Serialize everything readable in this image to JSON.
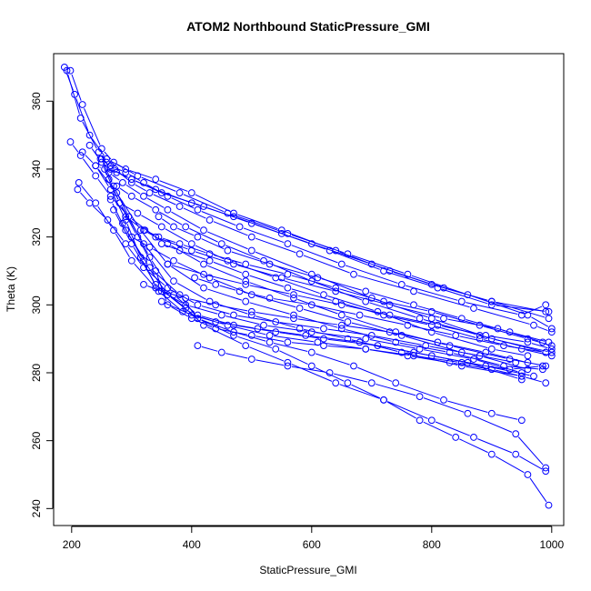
{
  "chart_data": {
    "type": "line",
    "title": "ATOM2 Northbound StaticPressure_GMI",
    "xlabel": "StaticPressure_GMI",
    "ylabel": "Theta (K)",
    "xlim": [
      170,
      1020
    ],
    "ylim": [
      235,
      374
    ],
    "x_ticks": [
      200,
      400,
      600,
      800,
      1000
    ],
    "y_ticks": [
      240,
      260,
      280,
      300,
      320,
      340,
      360
    ],
    "x_tick_labels": [
      "200",
      "400",
      "600",
      "800",
      "1000"
    ],
    "y_tick_labels": [
      "240",
      "260",
      "280",
      "300",
      "320",
      "340",
      "360"
    ],
    "grid": false,
    "markers": "open-circle",
    "color": "#0000ff",
    "series": [
      {
        "x": [
          188,
          205,
          230,
          258,
          290,
          340,
          400,
          470,
          550,
          640,
          730,
          820,
          900,
          990
        ],
        "y": [
          370,
          362,
          350,
          343,
          340,
          337,
          333,
          327,
          322,
          316,
          310,
          305,
          301,
          298
        ]
      },
      {
        "x": [
          192,
          215,
          245,
          265,
          300,
          350,
          420,
          500,
          600,
          700,
          800,
          900,
          995
        ],
        "y": [
          369,
          355,
          345,
          340,
          337,
          333,
          329,
          324,
          318,
          312,
          306,
          301,
          296
        ]
      },
      {
        "x": [
          198,
          218,
          250,
          270,
          310,
          380,
          460,
          560,
          660,
          760,
          860,
          960,
          1000
        ],
        "y": [
          369,
          359,
          346,
          342,
          338,
          333,
          327,
          321,
          315,
          309,
          303,
          297,
          293
        ]
      },
      {
        "x": [
          240,
          255,
          275,
          300,
          340,
          400,
          470,
          550,
          630,
          720,
          810,
          900,
          995
        ],
        "y": [
          341,
          340,
          339,
          337,
          334,
          330,
          326,
          321,
          316,
          310,
          305,
          300,
          298
        ]
      },
      {
        "x": [
          248,
          265,
          290,
          320,
          360,
          410,
          480,
          560,
          650,
          750,
          850,
          950,
          990
        ],
        "y": [
          343,
          341,
          339,
          336,
          332,
          328,
          323,
          318,
          312,
          306,
          301,
          297,
          300
        ]
      },
      {
        "x": [
          258,
          272,
          300,
          330,
          380,
          430,
          500,
          580,
          670,
          770,
          870,
          970,
          1000
        ],
        "y": [
          342,
          340,
          336,
          333,
          329,
          325,
          320,
          315,
          309,
          304,
          299,
          294,
          292
        ]
      },
      {
        "x": [
          262,
          285,
          320,
          360,
          420,
          500,
          600,
          700,
          800,
          900,
          1000
        ],
        "y": [
          339,
          336,
          332,
          328,
          322,
          316,
          309,
          302,
          296,
          290,
          286
        ]
      },
      {
        "x": [
          275,
          300,
          340,
          390,
          450,
          520,
          600,
          690,
          780,
          880,
          990
        ],
        "y": [
          335,
          332,
          328,
          323,
          318,
          313,
          307,
          301,
          296,
          291,
          286
        ]
      },
      {
        "x": [
          280,
          310,
          350,
          400,
          460,
          540,
          620,
          710,
          800,
          900,
          960
        ],
        "y": [
          330,
          327,
          323,
          318,
          313,
          308,
          303,
          298,
          292,
          287,
          285
        ]
      },
      {
        "x": [
          290,
          320,
          360,
          420,
          490,
          570,
          650,
          740,
          830,
          930,
          990
        ],
        "y": [
          326,
          322,
          318,
          312,
          307,
          302,
          297,
          292,
          288,
          284,
          282
        ]
      },
      {
        "x": [
          300,
          330,
          370,
          430,
          500,
          580,
          660,
          750,
          850,
          940
        ],
        "y": [
          320,
          317,
          313,
          308,
          303,
          299,
          295,
          291,
          286,
          283
        ]
      },
      {
        "x": [
          210,
          230,
          260,
          290,
          320,
          360,
          410,
          470,
          540,
          620,
          700,
          790,
          880,
          960
        ],
        "y": [
          334,
          330,
          325,
          318,
          311,
          305,
          300,
          297,
          295,
          293,
          291,
          288,
          285,
          281
        ]
      },
      {
        "x": [
          212,
          240,
          270,
          300,
          340,
          390,
          450,
          520,
          600,
          690,
          780,
          870,
          950
        ],
        "y": [
          336,
          330,
          322,
          313,
          305,
          300,
          297,
          294,
          292,
          290,
          287,
          284,
          280
        ]
      },
      {
        "x": [
          240,
          265,
          290,
          315,
          345,
          385,
          440,
          510,
          590,
          680,
          770,
          860,
          950
        ],
        "y": [
          341,
          334,
          325,
          314,
          304,
          298,
          295,
          293,
          291,
          289,
          286,
          283,
          278
        ]
      },
      {
        "x": [
          250,
          270,
          295,
          330,
          370,
          410,
          470,
          540,
          620,
          710,
          800,
          890,
          970
        ],
        "y": [
          343,
          335,
          326,
          314,
          303,
          297,
          294,
          292,
          290,
          288,
          285,
          282,
          279
        ]
      },
      {
        "x": [
          262,
          280,
          310,
          340,
          360,
          400,
          440,
          500,
          560,
          620,
          690,
          760,
          830,
          900,
          950
        ],
        "y": [
          337,
          330,
          320,
          310,
          300,
          296,
          293,
          291,
          289,
          288,
          287,
          285,
          283,
          281,
          279
        ]
      },
      {
        "x": [
          265,
          290,
          330,
          380,
          410,
          470,
          530,
          600,
          670,
          740,
          820,
          900,
          950
        ],
        "y": [
          331,
          322,
          311,
          303,
          296,
          292,
          289,
          286,
          282,
          277,
          272,
          268,
          266
        ]
      },
      {
        "x": [
          270,
          300,
          340,
          390,
          420,
          490,
          560,
          640,
          720,
          800,
          870,
          940,
          990
        ],
        "y": [
          328,
          318,
          306,
          299,
          294,
          288,
          283,
          277,
          272,
          266,
          261,
          256,
          251
        ]
      },
      {
        "x": [
          285,
          320,
          360,
          410,
          470,
          540,
          600,
          660,
          720,
          780,
          840,
          900,
          960,
          995
        ],
        "y": [
          324,
          313,
          303,
          296,
          291,
          287,
          282,
          277,
          272,
          266,
          261,
          256,
          250,
          241
        ]
      },
      {
        "x": [
          230,
          250,
          280,
          320,
          370,
          430,
          500,
          580,
          660,
          750,
          850,
          950,
          990
        ],
        "y": [
          347,
          342,
          330,
          318,
          307,
          301,
          297,
          293,
          290,
          286,
          282,
          279,
          277
        ]
      },
      {
        "x": [
          218,
          240,
          275,
          315,
          360,
          420,
          490,
          570,
          650,
          740,
          830,
          920,
          985
        ],
        "y": [
          345,
          341,
          333,
          322,
          312,
          305,
          301,
          297,
          293,
          289,
          286,
          282,
          281
        ]
      },
      {
        "x": [
          198,
          215,
          240,
          265,
          295,
          340,
          400,
          470,
          550,
          640,
          730,
          820,
          910,
          985
        ],
        "y": [
          348,
          344,
          338,
          332,
          326,
          320,
          316,
          312,
          308,
          304,
          300,
          296,
          293,
          289
        ]
      },
      {
        "x": [
          322,
          345,
          380,
          430,
          490,
          560,
          640,
          720,
          800,
          880,
          960,
          1000
        ],
        "y": [
          322,
          320,
          318,
          315,
          312,
          309,
          305,
          301,
          298,
          294,
          290,
          288
        ]
      },
      {
        "x": [
          345,
          370,
          410,
          460,
          530,
          610,
          690,
          770,
          850,
          930,
          995
        ],
        "y": [
          326,
          323,
          320,
          316,
          312,
          308,
          304,
          300,
          296,
          292,
          289
        ]
      },
      {
        "x": [
          350,
          380,
          430,
          490,
          560,
          640,
          720,
          800,
          880,
          950,
          1000
        ],
        "y": [
          318,
          316,
          313,
          309,
          305,
          301,
          297,
          294,
          290,
          287,
          285
        ]
      },
      {
        "x": [
          405,
          440,
          480,
          530,
          600,
          680,
          760,
          840,
          920,
          990
        ],
        "y": [
          308,
          306,
          304,
          302,
          300,
          297,
          294,
          291,
          288,
          286
        ]
      },
      {
        "x": [
          410,
          450,
          500,
          560,
          630,
          700,
          780,
          860,
          940,
          990
        ],
        "y": [
          288,
          286,
          284,
          282,
          280,
          277,
          273,
          268,
          262,
          252
        ]
      },
      {
        "x": [
          350,
          400,
          460,
          530,
          610,
          690,
          770,
          850,
          930,
          985
        ],
        "y": [
          301,
          297,
          294,
          291,
          289,
          287,
          285,
          283,
          281,
          282
        ]
      },
      {
        "x": [
          360,
          420,
          490,
          570,
          650,
          730,
          810,
          890,
          960,
          1000
        ],
        "y": [
          312,
          309,
          306,
          303,
          300,
          297,
          294,
          291,
          289,
          287
        ]
      },
      {
        "x": [
          320,
          350,
          390,
          440,
          500,
          570,
          650,
          730,
          810,
          890,
          960
        ],
        "y": [
          306,
          304,
          302,
          300,
          298,
          296,
          294,
          292,
          289,
          286,
          283
        ]
      }
    ]
  }
}
